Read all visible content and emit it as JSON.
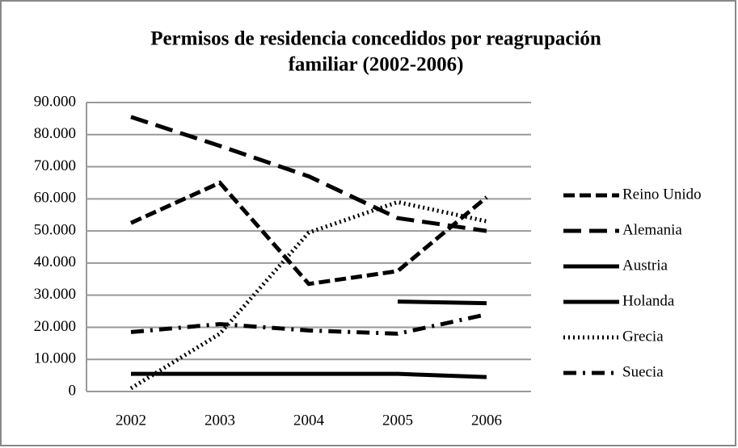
{
  "chart_data": {
    "type": "line",
    "title": [
      "Permisos de residencia concedidos por reagrupación",
      "familiar (2002-2006)"
    ],
    "categories": [
      "2002",
      "2003",
      "2004",
      "2005",
      "2006"
    ],
    "series": [
      {
        "name": "Reino Unido",
        "color": "#000000",
        "dash": "14,6",
        "values": [
          52500,
          65000,
          33500,
          37500,
          60500
        ]
      },
      {
        "name": "Alemania",
        "color": "#000000",
        "dash": "22,10",
        "values": [
          85500,
          76500,
          67000,
          54000,
          50000
        ]
      },
      {
        "name": "Austria",
        "color": "#000000",
        "dash": "none",
        "values": [
          5500,
          5500,
          5500,
          5500,
          4500
        ]
      },
      {
        "name": "Holanda",
        "color": "#000000",
        "dash": "none",
        "values": [
          null,
          null,
          null,
          28000,
          27500
        ]
      },
      {
        "name": "Grecia",
        "color": "#000000",
        "dash": "2,4",
        "values": [
          1000,
          18000,
          49500,
          59000,
          53000
        ]
      },
      {
        "name": "Suecia",
        "color": "#000000",
        "dash": "16,8,3,8",
        "values": [
          18500,
          21000,
          19000,
          18000,
          24000
        ]
      }
    ],
    "ylim": [
      0,
      90000
    ],
    "yticks": [
      0,
      {
        "value": 10000,
        "label": "10.000"
      },
      {
        "value": 20000,
        "label": "20.000"
      },
      {
        "value": 30000,
        "label": "30.000"
      },
      {
        "value": 40000,
        "label": "40.000"
      },
      {
        "value": 50000,
        "label": "50.000"
      },
      {
        "value": 60000,
        "label": "60.000"
      },
      {
        "value": 70000,
        "label": "70.000"
      },
      {
        "value": 80000,
        "label": "80.000"
      },
      {
        "value": 90000,
        "label": "90.000"
      }
    ],
    "grid": true,
    "legend": "right"
  }
}
